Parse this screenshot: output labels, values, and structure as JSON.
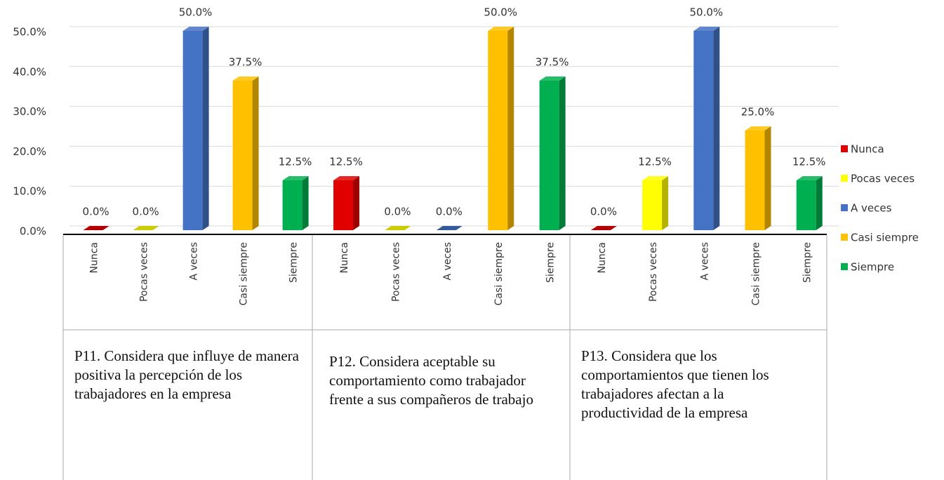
{
  "chart_data": {
    "type": "bar3d",
    "categories": [
      "P11. Considera que influye de manera positiva la percepción de los trabajadores en la empresa",
      "P12. Considera aceptable su comportamiento como trabajador frente a sus compañeros de trabajo",
      "P13. Considera que los comportamientos que tienen los trabajadores afectan a la productividad de la empresa"
    ],
    "series": [
      {
        "name": "Nunca",
        "color": "#e00000",
        "values": [
          0,
          12.5,
          0
        ],
        "value_labels": [
          "0.0%",
          "12.5%",
          "0.0%"
        ]
      },
      {
        "name": "Pocas veces",
        "color": "#ffff00",
        "values": [
          0,
          0,
          12.5
        ],
        "value_labels": [
          "0.0%",
          "0.0%",
          "12.5%"
        ]
      },
      {
        "name": "A veces",
        "color": "#4472c4",
        "values": [
          50,
          0,
          50
        ],
        "value_labels": [
          "50.0%",
          "0.0%",
          "50.0%"
        ]
      },
      {
        "name": "Casi siempre",
        "color": "#ffc000",
        "values": [
          37.5,
          50,
          25
        ],
        "value_labels": [
          "37.5%",
          "50.0%",
          "25.0%"
        ]
      },
      {
        "name": "Siempre",
        "color": "#00b050",
        "values": [
          12.5,
          37.5,
          12.5
        ],
        "value_labels": [
          "12.5%",
          "37.5%",
          "12.5%"
        ]
      }
    ],
    "ylim": [
      0,
      50
    ],
    "yticks": [
      {
        "value": 0,
        "label": "0.0%"
      },
      {
        "value": 10,
        "label": "10.0%"
      },
      {
        "value": 20,
        "label": "20.0%"
      },
      {
        "value": 30,
        "label": "30.0%"
      },
      {
        "value": 40,
        "label": "40.0%"
      },
      {
        "value": 50,
        "label": "50.0%"
      }
    ],
    "grid": true,
    "legend": "right"
  }
}
